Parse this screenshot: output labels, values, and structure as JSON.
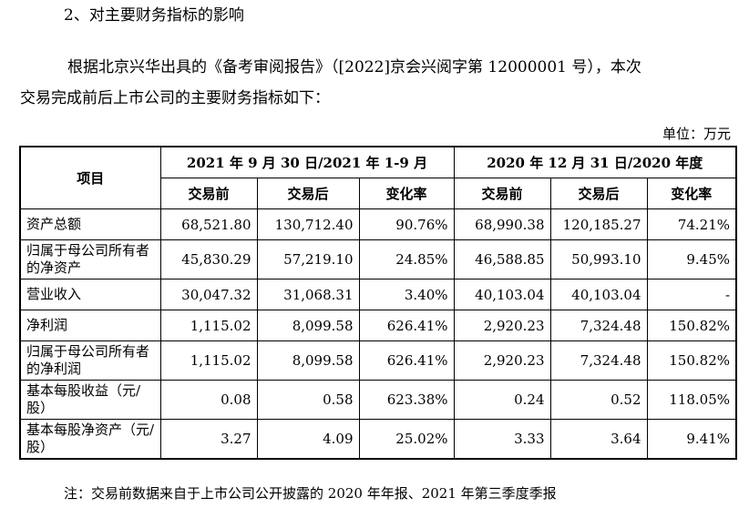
{
  "heading": "2、对主要财务指标的影响",
  "paragraph": [
    "根据北京兴华出具的《备考审阅报告》（[2022]京会兴阅字第 12000001 号），本次",
    "交易完成前后上市公司的主要财务指标如下："
  ],
  "unit": "单位：万元",
  "table": {
    "item_header": "项目",
    "group_headers": [
      "2021 年 9 月 30 日/2021 年 1-9 月",
      "2020 年 12 月 31 日/2020 年度"
    ],
    "sub_headers": [
      "交易前",
      "交易后",
      "变化率",
      "交易前",
      "交易后",
      "变化率"
    ],
    "rows": [
      {
        "label": "资产总额",
        "values": [
          "68,521.80",
          "130,712.40",
          "90.76%",
          "68,990.38",
          "120,185.27",
          "74.21%"
        ]
      },
      {
        "label": "归属于母公司所有者的净资产",
        "values": [
          "45,830.29",
          "57,219.10",
          "24.85%",
          "46,588.85",
          "50,993.10",
          "9.45%"
        ]
      },
      {
        "label": "营业收入",
        "values": [
          "30,047.32",
          "31,068.31",
          "3.40%",
          "40,103.04",
          "40,103.04",
          "-"
        ]
      },
      {
        "label": "净利润",
        "values": [
          "1,115.02",
          "8,099.58",
          "626.41%",
          "2,920.23",
          "7,324.48",
          "150.82%"
        ]
      },
      {
        "label": "归属于母公司所有者的净利润",
        "values": [
          "1,115.02",
          "8,099.58",
          "626.41%",
          "2,920.23",
          "7,324.48",
          "150.82%"
        ]
      },
      {
        "label": "基本每股收益（元/股）",
        "values": [
          "0.08",
          "0.58",
          "623.38%",
          "0.24",
          "0.52",
          "118.05%"
        ]
      },
      {
        "label": "基本每股净资产（元/股）",
        "values": [
          "3.27",
          "4.09",
          "25.02%",
          "3.33",
          "3.64",
          "9.41%"
        ]
      }
    ]
  },
  "note": "注：交易前数据来自于上市公司公开披露的 2020 年年报、2021 年第三季度季报"
}
